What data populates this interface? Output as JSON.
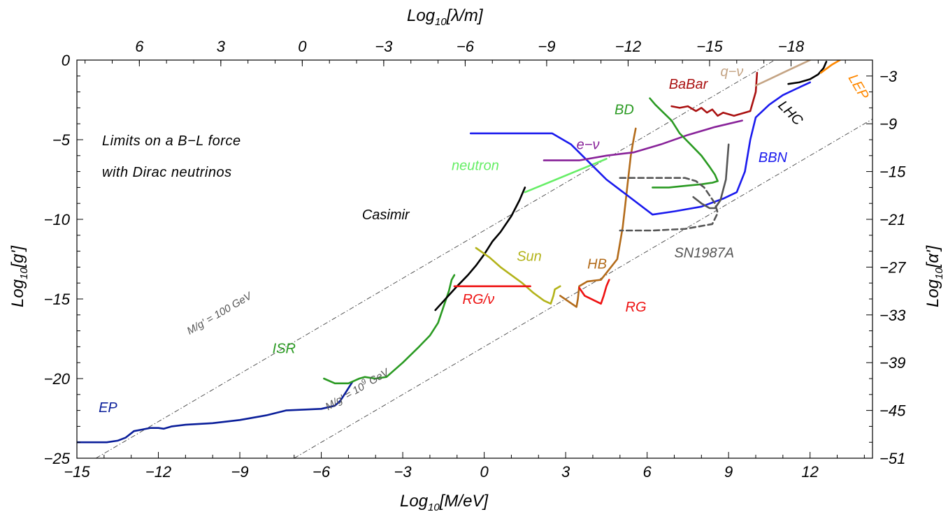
{
  "chart_data": {
    "type": "line",
    "title": "",
    "xlabel": {
      "prefix": "Log",
      "sub": "10",
      "rest": "[M/eV]"
    },
    "ylabel": {
      "prefix": "Log",
      "sub": "10",
      "rest": "[g']"
    },
    "top_xlabel": {
      "prefix": "Log",
      "sub": "10",
      "rest": "[λ/m]"
    },
    "right_ylabel": {
      "prefix": "Log",
      "sub": "10",
      "rest": "[α']"
    },
    "xlim": [
      -15,
      14.3
    ],
    "ylim": [
      -25,
      0
    ],
    "x_ticks": [
      "−15",
      "−12",
      "−9",
      "−6",
      "−3",
      "0",
      "3",
      "6",
      "9",
      "12"
    ],
    "y_ticks": [
      "0",
      "−5",
      "−10",
      "−15",
      "−20",
      "−25"
    ],
    "top_ticks": [
      {
        "label": "6",
        "x": -12.7
      },
      {
        "label": "3",
        "x": -9.7
      },
      {
        "label": "0",
        "x": -6.7
      },
      {
        "label": "−3",
        "x": -3.7
      },
      {
        "label": "−6",
        "x": -0.7
      },
      {
        "label": "−9",
        "x": 2.3
      },
      {
        "label": "−12",
        "x": 5.3
      },
      {
        "label": "−15",
        "x": 8.3
      },
      {
        "label": "−18",
        "x": 11.3
      }
    ],
    "right_ticks": [
      {
        "label": "−3",
        "y": -1
      },
      {
        "label": "−9",
        "y": -4
      },
      {
        "label": "−15",
        "y": -7
      },
      {
        "label": "−21",
        "y": -10
      },
      {
        "label": "−27",
        "y": -13
      },
      {
        "label": "−33",
        "y": -16
      },
      {
        "label": "−39",
        "y": -19
      },
      {
        "label": "−45",
        "y": -22
      },
      {
        "label": "−51",
        "y": -25
      }
    ],
    "annotation_lines": [
      "Limits on a B−L force",
      "with Dirac neutrinos"
    ],
    "reference_lines": [
      {
        "name": "M/g' = 100 GeV",
        "label": "M/g' = 100 GeV",
        "points": [
          [
            -14.3,
            -25
          ],
          [
            10.7,
            0
          ]
        ]
      },
      {
        "name": "M/g' = 10^9 GeV",
        "label_main": "M/g' = 10",
        "label_sup": "9",
        "label_unit": "  GeV",
        "points": [
          [
            -7.0,
            -25
          ],
          [
            14.3,
            -3.7
          ]
        ]
      }
    ],
    "series": [
      {
        "name": "EP",
        "label": "EP",
        "color": "#0a1e9a",
        "style": "solid",
        "x": [
          -15,
          -13.9,
          -13.5,
          -13.2,
          -12.9,
          -12.6,
          -12.3,
          -12.0,
          -11.8,
          -11.5,
          -11.0,
          -10.0,
          -9.0,
          -8.0,
          -7.3,
          -6.0,
          -5.5,
          -5.3,
          -5.15,
          -5.0,
          -4.85
        ],
        "y": [
          -24.0,
          -24.0,
          -23.9,
          -23.7,
          -23.3,
          -23.2,
          -23.1,
          -23.1,
          -23.15,
          -23.0,
          -22.9,
          -22.8,
          -22.6,
          -22.3,
          -22.0,
          -21.9,
          -21.7,
          -21.4,
          -21.0,
          -20.6,
          -20.2
        ]
      },
      {
        "name": "ISR",
        "label": "ISR",
        "color": "#2a9a22",
        "style": "solid",
        "x": [
          -5.9,
          -5.5,
          -5.0,
          -4.6,
          -4.4,
          -4.0,
          -3.6,
          -3.0,
          -2.4,
          -2.0,
          -1.7,
          -1.5,
          -1.3,
          -1.2,
          -1.1
        ],
        "y": [
          -20.0,
          -20.3,
          -20.3,
          -20.0,
          -19.9,
          -20.0,
          -19.9,
          -19.0,
          -18.0,
          -17.3,
          -16.5,
          -15.5,
          -14.5,
          -13.8,
          -13.5
        ]
      },
      {
        "name": "Casimir",
        "label": "Casimir",
        "color": "#000000",
        "style": "solid",
        "x": [
          -1.8,
          -1.0,
          -0.6,
          -0.3,
          0.0,
          0.3,
          0.6,
          1.0,
          1.3,
          1.5
        ],
        "y": [
          -15.7,
          -14.2,
          -13.5,
          -12.9,
          -12.2,
          -11.4,
          -10.8,
          -9.8,
          -8.8,
          -8.0
        ]
      },
      {
        "name": "neutron",
        "label": "neutron",
        "color": "#66ee66",
        "style": "solid",
        "x": [
          1.5,
          2.5,
          3.5,
          4.5
        ],
        "y": [
          -8.3,
          -7.6,
          -6.9,
          -6.2
        ]
      },
      {
        "name": "Sun",
        "label": "Sun",
        "color": "#b3b31a",
        "style": "solid",
        "x": [
          -0.3,
          0.2,
          0.6,
          1.0,
          1.4,
          1.8,
          2.2,
          2.45,
          2.55,
          2.6,
          2.7,
          2.8
        ],
        "y": [
          -11.8,
          -12.4,
          -13.0,
          -13.5,
          -14.0,
          -14.6,
          -15.1,
          -15.3,
          -14.8,
          -14.4,
          -14.3,
          -14.2
        ]
      },
      {
        "name": "RG/ν",
        "label": "RG/ν",
        "color": "#ee1111",
        "style": "solid",
        "x": [
          -1.1,
          1.7
        ],
        "y": [
          -14.2,
          -14.2
        ]
      },
      {
        "name": "HB",
        "label": "HB",
        "color": "#b36b1a",
        "style": "solid",
        "x": [
          2.8,
          3.4,
          3.45,
          3.5,
          3.8,
          4.3,
          4.9,
          5.1,
          5.2,
          5.3,
          5.4,
          5.5,
          5.58
        ],
        "y": [
          -14.8,
          -15.5,
          -15.0,
          -14.2,
          -13.9,
          -13.8,
          -12.5,
          -10.5,
          -9.0,
          -7.5,
          -6.0,
          -5.0,
          -4.3
        ]
      },
      {
        "name": "RG",
        "label": "RG",
        "color": "#ee1111",
        "style": "solid",
        "x": [
          3.5,
          3.7,
          4.3,
          4.4,
          4.5,
          4.6
        ],
        "y": [
          -14.3,
          -14.8,
          -15.3,
          -14.8,
          -14.2,
          -13.8
        ]
      },
      {
        "name": "BBN",
        "label": "BBN",
        "color": "#1a1aee",
        "style": "solid",
        "x": [
          -0.5,
          1.0,
          2.5,
          3.2,
          4.5,
          6.2,
          7.0,
          8.0,
          8.8,
          9.3,
          9.6,
          9.8,
          10.0,
          10.5,
          11.0,
          11.5,
          12.0
        ],
        "y": [
          -4.6,
          -4.6,
          -4.6,
          -5.3,
          -7.5,
          -9.7,
          -9.5,
          -9.2,
          -8.7,
          -8.3,
          -7.0,
          -5.0,
          -3.6,
          -2.8,
          -2.2,
          -1.8,
          -1.4
        ]
      },
      {
        "name": "e−ν",
        "label": "e−ν",
        "color": "#882299",
        "style": "solid",
        "x": [
          2.2,
          3.5,
          4.5,
          5.5,
          6.5,
          7.5,
          8.5,
          9.5
        ],
        "y": [
          -6.3,
          -6.3,
          -6.0,
          -5.8,
          -5.3,
          -4.7,
          -4.2,
          -3.8
        ]
      },
      {
        "name": "BD",
        "label": "BD",
        "color": "#2a9a22",
        "style": "solid",
        "x": [
          6.1,
          6.3,
          6.6,
          6.9,
          7.2,
          7.6,
          8.0,
          8.3,
          8.5,
          8.6,
          8.4,
          8.0,
          7.4,
          6.8,
          6.2
        ],
        "y": [
          -2.4,
          -2.8,
          -3.3,
          -3.8,
          -4.6,
          -5.3,
          -6.0,
          -6.7,
          -7.2,
          -7.6,
          -7.7,
          -7.8,
          -7.9,
          -8.0,
          -8.0
        ]
      },
      {
        "name": "BaBar",
        "label": "BaBar",
        "color": "#aa1111",
        "style": "solid",
        "x": [
          6.9,
          7.2,
          7.5,
          7.8,
          8.0,
          8.2,
          8.4,
          8.6,
          8.8,
          9.0,
          9.2,
          9.4,
          9.6,
          9.8,
          10.0,
          10.05
        ],
        "y": [
          -2.9,
          -3.0,
          -2.9,
          -3.2,
          -3.0,
          -3.3,
          -3.1,
          -3.5,
          -3.3,
          -3.4,
          -3.5,
          -3.4,
          -3.3,
          -3.2,
          -2.0,
          -0.8
        ]
      },
      {
        "name": "q−ν",
        "label": "q−ν",
        "color": "#c4a484",
        "style": "solid",
        "x": [
          10.0,
          10.5,
          11.0,
          11.5,
          12.0
        ],
        "y": [
          -1.6,
          -1.2,
          -0.8,
          -0.4,
          0.0
        ]
      },
      {
        "name": "LHC",
        "label": "LHC",
        "color": "#000000",
        "style": "solid",
        "x": [
          11.2,
          11.6,
          12.0,
          12.3,
          12.5,
          12.6
        ],
        "y": [
          -1.5,
          -1.4,
          -1.2,
          -0.9,
          -0.5,
          -0.1
        ]
      },
      {
        "name": "LEP",
        "label": "LEP",
        "color": "#ff8800",
        "style": "solid",
        "x": [
          12.4,
          12.8,
          13.1
        ],
        "y": [
          -0.8,
          -0.3,
          0.0
        ]
      },
      {
        "name": "SN1987A",
        "label": "SN1987A",
        "color": "#555555",
        "style": "dashed",
        "x": [
          5.0,
          6.2,
          7.4,
          7.8,
          8.1,
          8.3,
          8.5,
          8.6,
          8.4,
          7.4,
          6.2,
          5.0
        ],
        "y": [
          -7.4,
          -7.4,
          -7.4,
          -7.6,
          -8.0,
          -8.5,
          -9.0,
          -9.6,
          -10.3,
          -10.6,
          -10.7,
          -10.7
        ]
      },
      {
        "name": "SN1987A-branch",
        "label": "",
        "color": "#555555",
        "style": "solid",
        "x": [
          7.7,
          8.0,
          8.3,
          8.5,
          8.7,
          8.9,
          9.0
        ],
        "y": [
          -8.6,
          -9.0,
          -9.3,
          -9.3,
          -8.8,
          -7.5,
          -5.3
        ]
      }
    ],
    "labels": [
      {
        "text": "EP",
        "x": -14.2,
        "y": -22.1,
        "color": "#0a1e9a"
      },
      {
        "text": "ISR",
        "x": -7.8,
        "y": -18.4,
        "color": "#2a9a22"
      },
      {
        "text": "Casimir",
        "x": -4.5,
        "y": -10.0,
        "color": "#000000"
      },
      {
        "text": "neutron",
        "x": -1.2,
        "y": -6.9,
        "color": "#66ee66"
      },
      {
        "text": "Sun",
        "x": 1.2,
        "y": -12.6,
        "color": "#b3b31a"
      },
      {
        "text": "RG/ν",
        "x": -0.8,
        "y": -15.3,
        "color": "#ee1111"
      },
      {
        "text": "HB",
        "x": 3.8,
        "y": -13.1,
        "color": "#b36b1a"
      },
      {
        "text": "RG",
        "x": 5.2,
        "y": -15.8,
        "color": "#ee1111"
      },
      {
        "text": "BBN",
        "x": 10.1,
        "y": -6.4,
        "color": "#1a1aee"
      },
      {
        "text": "e−ν",
        "x": 3.4,
        "y": -5.6,
        "color": "#882299"
      },
      {
        "text": "BD",
        "x": 4.8,
        "y": -3.4,
        "color": "#2a9a22"
      },
      {
        "text": "BaBar",
        "x": 6.8,
        "y": -1.8,
        "color": "#aa1111"
      },
      {
        "text": "q−ν",
        "x": 8.7,
        "y": -1.0,
        "color": "#c4a484"
      },
      {
        "text": "LHC",
        "x": 10.8,
        "y": -2.9,
        "color": "#000000",
        "rotate": 45
      },
      {
        "text": "LEP",
        "x": 13.4,
        "y": -1.1,
        "color": "#ff8800",
        "rotate": 60
      },
      {
        "text": "SN1987A",
        "x": 7.0,
        "y": -12.4,
        "color": "#555555"
      }
    ]
  }
}
